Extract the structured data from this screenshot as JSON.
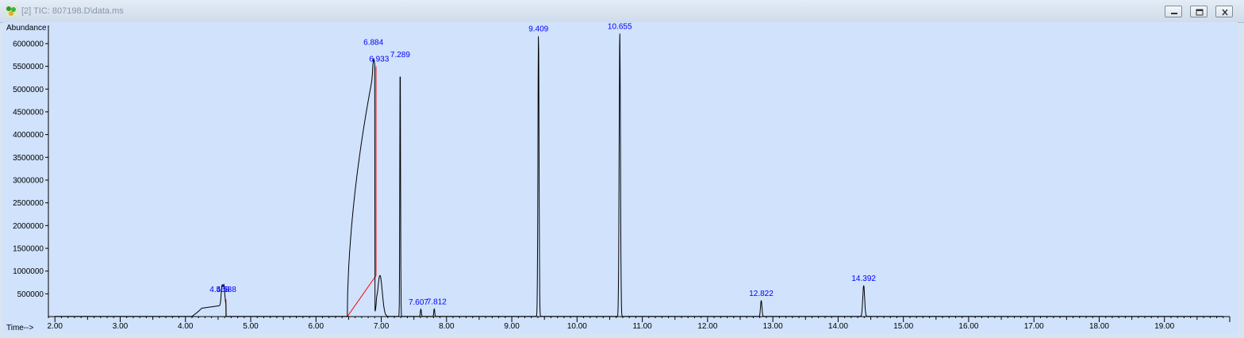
{
  "window": {
    "title": "[2] TIC: 807198.D\\data.ms",
    "icon": "chromatogram-app-icon",
    "buttons": [
      "minimize",
      "restore",
      "close"
    ]
  },
  "chart_data": {
    "type": "line",
    "ylabel": "Abundance",
    "xlabel": "Time-->",
    "xlim": [
      1.9,
      20.0
    ],
    "ylim": [
      0,
      6400000
    ],
    "x_ticks": [
      "2.00",
      "3.00",
      "4.00",
      "5.00",
      "6.00",
      "7.00",
      "8.00",
      "9.00",
      "10.00",
      "11.00",
      "12.00",
      "13.00",
      "14.00",
      "15.00",
      "16.00",
      "17.00",
      "18.00",
      "19.00"
    ],
    "y_ticks": [
      "500000",
      "1000000",
      "1500000",
      "2000000",
      "2500000",
      "3000000",
      "3500000",
      "4000000",
      "4500000",
      "5000000",
      "5500000",
      "6000000"
    ],
    "peaks": [
      {
        "label": "4.568",
        "rt": 4.56,
        "height": 420000
      },
      {
        "label": "4.588",
        "rt": 4.59,
        "height": 420000
      },
      {
        "label": "6.884",
        "rt": 6.88,
        "height": 5870000
      },
      {
        "label": "6.933",
        "rt": 6.93,
        "height": 5550000
      },
      {
        "label": "7.289",
        "rt": 7.29,
        "height": 5600000
      },
      {
        "label": "7.607",
        "rt": 7.607,
        "height": 160000
      },
      {
        "label": "7.812",
        "rt": 7.812,
        "height": 170000
      },
      {
        "label": "9.409",
        "rt": 9.409,
        "height": 6200000
      },
      {
        "label": "10.655",
        "rt": 10.655,
        "height": 6250000
      },
      {
        "label": "12.822",
        "rt": 12.822,
        "height": 350000
      },
      {
        "label": "14.392",
        "rt": 14.392,
        "height": 680000
      }
    ],
    "trace_color": "#000000",
    "baseline_color": "#ff0000",
    "label_color": "#0000ff",
    "background_color": "#d0e2fc"
  }
}
